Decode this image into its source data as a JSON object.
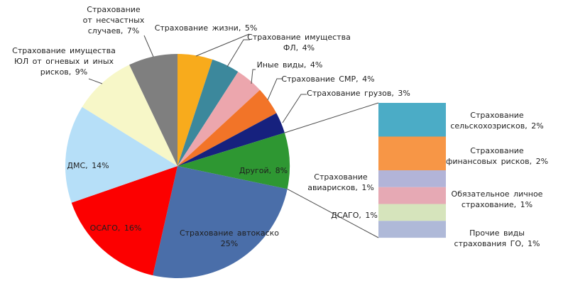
{
  "chart_data": {
    "type": "pie",
    "subtype": "bar-of-pie",
    "title": "",
    "unit": "%",
    "background_color": "#FFFFFF",
    "legend": "none",
    "pie_slices": [
      {
        "name": "Страхование жизни",
        "value": 5,
        "label_lines": [
          "Страхование жизни, 5%"
        ],
        "color": "#F8AB1C",
        "label_position": "outside"
      },
      {
        "name": "Страхование имущества ФЛ",
        "value": 4,
        "label_lines": [
          "Страхование имущества",
          "ФЛ, 4%"
        ],
        "color": "#3C889C",
        "label_position": "outside"
      },
      {
        "name": "Иные виды",
        "value": 4,
        "label_lines": [
          "Иные виды, 4%"
        ],
        "color": "#ECA6AD",
        "label_position": "outside"
      },
      {
        "name": "Страхование СМР",
        "value": 4,
        "label_lines": [
          "Страхование СМР, 4%"
        ],
        "color": "#F27428",
        "label_position": "outside"
      },
      {
        "name": "Страхование грузов",
        "value": 3,
        "label_lines": [
          "Страхование грузов, 3%"
        ],
        "color": "#16217E",
        "label_position": "outside"
      },
      {
        "name": "Другой",
        "value": 8,
        "label_lines": [
          "Другой, 8%"
        ],
        "color": "#2E9732",
        "label_position": "inside",
        "label_color": "#FFFFFF"
      },
      {
        "name": "Страхование автокаско",
        "value": 25,
        "label_lines": [
          "Страхование автокаско",
          "25%"
        ],
        "color": "#4A6EA9",
        "label_position": "inside",
        "label_color": "#FFFFFF"
      },
      {
        "name": "ОСАГО",
        "value": 16,
        "label_lines": [
          "ОСАГО, 16%"
        ],
        "color": "#FC0000",
        "label_position": "inside",
        "label_color": "#7F0D0D"
      },
      {
        "name": "ДМС",
        "value": 14,
        "label_lines": [
          "ДМС, 14%"
        ],
        "color": "#B6DFF8",
        "label_position": "inside",
        "label_color": "#1A1A1A"
      },
      {
        "name": "Страхование имущества ЮЛ от огневых и иных рисков",
        "value": 9,
        "label_lines": [
          "Страхование имущества",
          "ЮЛ от огневых и иных",
          "рисков, 9%"
        ],
        "color": "#F7F7C8",
        "label_position": "outside"
      },
      {
        "name": "Страхование от несчастных случаев",
        "value": 7,
        "label_lines": [
          "Страхование",
          "от несчастных",
          "случаев, 7%"
        ],
        "color": "#7F7F7F",
        "label_position": "outside"
      }
    ],
    "breakdown": {
      "of_slice": "Другой",
      "of_slice_value": 8,
      "segments": [
        {
          "name": "Страхование сельскохозрисков",
          "value": 2,
          "label_lines": [
            "Страхование",
            "сельскохозрисков, 2%"
          ],
          "color": "#4BACC6",
          "label_side": "right"
        },
        {
          "name": "Страхование финансовых рисков",
          "value": 2,
          "label_lines": [
            "Страхование",
            "финансовых рисков, 2%"
          ],
          "color": "#F79646",
          "label_side": "right"
        },
        {
          "name": "Страхование авиарисков",
          "value": 1,
          "label_lines": [
            "Страхование",
            "авиарисков, 1%"
          ],
          "color": "#B2B4D8",
          "label_side": "left"
        },
        {
          "name": "Обязательное личное страхование",
          "value": 1,
          "label_lines": [
            "Обязательное личное",
            "страхование, 1%"
          ],
          "color": "#E6A9B4",
          "label_side": "right"
        },
        {
          "name": "ДСАГО",
          "value": 1,
          "label_lines": [
            "ДСАГО, 1%"
          ],
          "color": "#D6E4BC",
          "label_side": "left"
        },
        {
          "name": "Прочие виды страхования ГО",
          "value": 1,
          "label_lines": [
            "Прочие виды",
            "страхования ГО, 1%"
          ],
          "color": "#AFB9D8",
          "label_side": "right"
        }
      ]
    }
  }
}
